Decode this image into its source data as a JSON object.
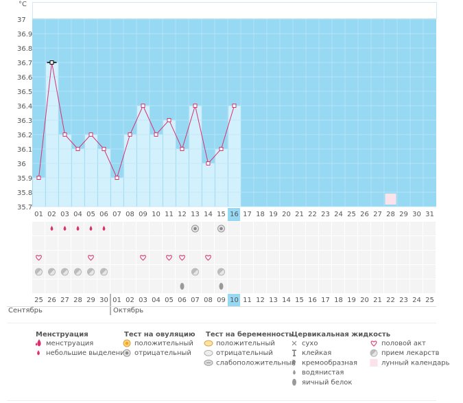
{
  "chart_data": {
    "type": "line",
    "y_label": "°C",
    "categories": [
      "01",
      "02",
      "03",
      "04",
      "05",
      "06",
      "07",
      "08",
      "09",
      "10",
      "11",
      "12",
      "13",
      "14",
      "15",
      "16",
      "17",
      "18",
      "19",
      "20",
      "21",
      "22",
      "23",
      "24",
      "25",
      "26",
      "27",
      "28",
      "29",
      "30",
      "31"
    ],
    "values": [
      35.9,
      36.7,
      36.2,
      36.1,
      36.2,
      36.1,
      35.9,
      36.2,
      36.4,
      36.2,
      36.3,
      36.1,
      36.4,
      36.0,
      36.1,
      36.4,
      null,
      null,
      null,
      null,
      null,
      null,
      null,
      null,
      null,
      null,
      null,
      null,
      null,
      null,
      null
    ],
    "color": "#d9306e",
    "selected": 1,
    "ylim": [
      35.7,
      37
    ],
    "yticks": [
      35.7,
      35.8,
      35.9,
      36,
      36.1,
      36.2,
      36.3,
      36.4,
      36.5,
      36.6,
      36.7,
      36.8,
      36.9,
      37
    ],
    "grid": true
  },
  "today": 15,
  "marks": {
    "light_bleeding": [
      1,
      2,
      3,
      4,
      5
    ],
    "ovulation_negative": [
      12,
      14
    ],
    "intercourse": [
      0,
      4,
      8,
      10,
      11,
      13
    ],
    "medication": [
      0,
      1,
      2,
      3,
      4,
      5,
      12,
      14
    ],
    "egg_white": [
      11,
      14
    ],
    "moon": [
      27
    ]
  },
  "dates": [
    "25",
    "26",
    "27",
    "28",
    "29",
    "30",
    "01",
    "02",
    "03",
    "04",
    "05",
    "06",
    "07",
    "08",
    "09",
    "10",
    "11",
    "12",
    "13",
    "14",
    "15",
    "16",
    "17",
    "18",
    "19",
    "20",
    "21",
    "22",
    "23",
    "24",
    "25"
  ],
  "red_dates": [
    3,
    4,
    10,
    11,
    17,
    18,
    24,
    25
  ],
  "months": [
    "Сентябрь",
    "Октябрь"
  ],
  "legend": [
    {
      "title": "Менструация",
      "items": [
        "менструация",
        "небольшие выделения"
      ]
    },
    {
      "title": "Тест на овуляцию",
      "items": [
        "положительный",
        "отрицательный"
      ]
    },
    {
      "title": "Тест на беременность",
      "items": [
        "положительный",
        "отрицательный",
        "слабоположительный"
      ]
    },
    {
      "title": "Цервикальная жидкость",
      "items": [
        "сухо",
        "клейкая",
        "кремообразная",
        "водянистая",
        "яичный белок"
      ]
    },
    {
      "items": [
        "половой акт",
        "прием лекарств",
        "лунный календарь"
      ]
    }
  ]
}
